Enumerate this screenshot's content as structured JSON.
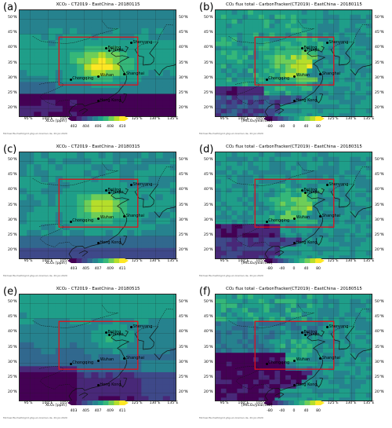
{
  "panels": [
    {
      "label": "(a)",
      "title": "XCO₂ - CT2019 - EastChina - 20180115",
      "cbar_label": "XCO₂ [ppm]",
      "cbar_ticks": [
        "402",
        "404",
        "406",
        "408",
        "410"
      ],
      "kind": "xco2",
      "date_key": "jan"
    },
    {
      "label": "(b)",
      "title": "CO₂ flux total - CarbonTracker(CT2019) - EastChina - 20180115",
      "cbar_label": "[MtCO₂/year/cell]",
      "cbar_ticks": [
        "-80",
        "-40",
        "0",
        "40",
        "80"
      ],
      "kind": "flux",
      "date_key": "jan"
    },
    {
      "label": "(c)",
      "title": "XCO₂ - CT2019 - EastChina - 20180315",
      "cbar_label": "XCO₂ [ppm]",
      "cbar_ticks": [
        "403",
        "405",
        "407",
        "409",
        "411"
      ],
      "kind": "xco2",
      "date_key": "mar"
    },
    {
      "label": "(d)",
      "title": "CO₂ flux total - CarbonTracker(CT2019) - EastChina - 20180315",
      "cbar_label": "[MtCO₂/year/cell]",
      "cbar_ticks": [
        "-80",
        "-40",
        "0",
        "40",
        "80"
      ],
      "kind": "flux",
      "date_key": "mar"
    },
    {
      "label": "(e)",
      "title": "XCO₂ - CT2019 - EastChina - 20180515",
      "cbar_label": "XCO₂ [ppm]",
      "cbar_ticks": [
        "403",
        "405",
        "407",
        "409",
        "411"
      ],
      "kind": "xco2",
      "date_key": "may"
    },
    {
      "label": "(f)",
      "title": "CO₂ flux total - CarbonTracker(CT2019) - EastChina - 20180515",
      "cbar_label": "[MtCO₂/year/cell]",
      "cbar_ticks": [
        "-80",
        "-40",
        "0",
        "40",
        "80"
      ],
      "kind": "flux",
      "date_key": "may"
    }
  ],
  "lon_ticks": [
    "95°E",
    "100°E",
    "105°E",
    "110°E",
    "115°E",
    "120°E",
    "125°E",
    "130°E",
    "135°E"
  ],
  "lat_ticks": [
    "50°N",
    "45°N",
    "40°N",
    "35°N",
    "30°N",
    "25°N",
    "20°N"
  ],
  "cities": [
    {
      "name": "Shenyang",
      "lon": 123.4,
      "lat": 41.8
    },
    {
      "name": "Beijing",
      "lon": 116.4,
      "lat": 39.9
    },
    {
      "name": "Tianjin",
      "lon": 117.2,
      "lat": 39.1
    },
    {
      "name": "Chongqing",
      "lon": 106.5,
      "lat": 29.6
    },
    {
      "name": "Wuhan",
      "lon": 114.3,
      "lat": 30.6
    },
    {
      "name": "Shanghai",
      "lon": 121.5,
      "lat": 31.2
    },
    {
      "name": "Hong Kong",
      "lon": 114.2,
      "lat": 22.3
    }
  ],
  "credit": "Michael Buchwitz/grid.ghg.uni-bremen.de, 20-Jul-2020",
  "region_box": {
    "lon": [
      103,
      125
    ],
    "lat": [
      28,
      44
    ]
  },
  "colors": {
    "box": "#e0101a",
    "coast": "#111111",
    "viridis_low": "#440154",
    "viridis_high": "#fde725"
  }
}
